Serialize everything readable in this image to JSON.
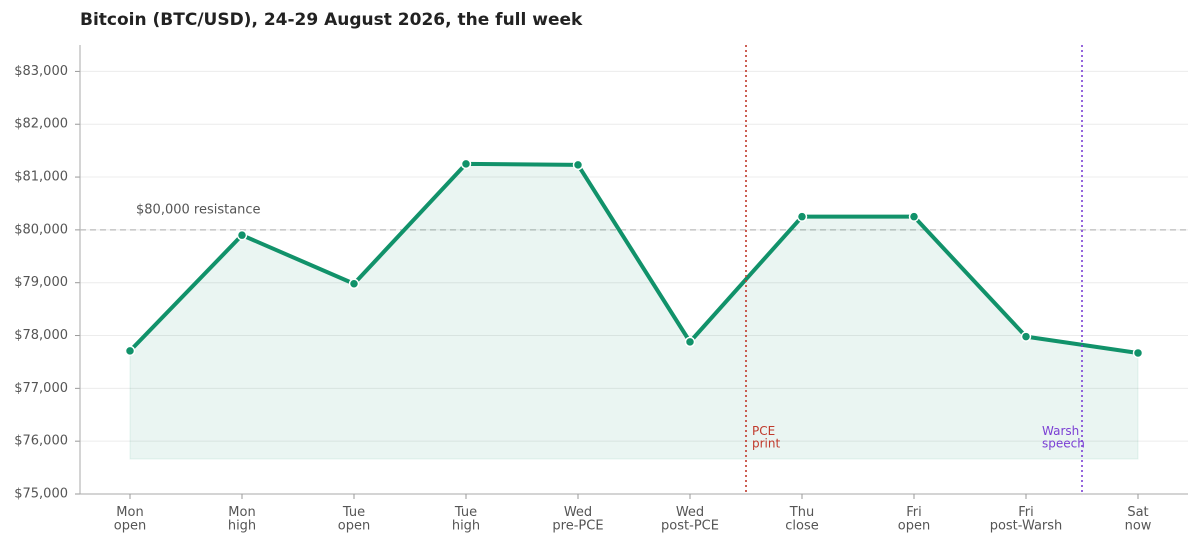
{
  "chart_data": {
    "type": "line",
    "title": "Bitcoin (BTC/USD), 24-29 August 2026, the full week",
    "categories": [
      "Mon\nopen",
      "Mon\nhigh",
      "Tue\nopen",
      "Tue\nhigh",
      "Wed\npre-PCE",
      "Wed\npost-PCE",
      "Thu\nclose",
      "Fri\nopen",
      "Fri\npost-Warsh",
      "Sat\nnow"
    ],
    "series": [
      {
        "name": "BTC/USD",
        "color": "#11926a",
        "values": [
          77710,
          79900,
          78980,
          81250,
          81230,
          77880,
          80250,
          80250,
          77980,
          77670
        ]
      }
    ],
    "ylim": [
      75000,
      83500
    ],
    "yticks": [
      {
        "value": 75000,
        "label": "$75,000"
      },
      {
        "value": 76000,
        "label": "$76,000"
      },
      {
        "value": 77000,
        "label": "$77,000"
      },
      {
        "value": 78000,
        "label": "$78,000"
      },
      {
        "value": 79000,
        "label": "$79,000"
      },
      {
        "value": 80000,
        "label": "$80,000"
      },
      {
        "value": 81000,
        "label": "$81,000"
      },
      {
        "value": 82000,
        "label": "$82,000"
      },
      {
        "value": 83000,
        "label": "$83,000"
      }
    ],
    "grid": true,
    "hlines": [
      {
        "value": 80000,
        "label": "$80,000 resistance",
        "color": "#bbbbbb"
      }
    ],
    "vlines": [
      {
        "x": 5.5,
        "label": "PCE\nprint",
        "color": "#c0392b"
      },
      {
        "x": 8.5,
        "label": "Warsh\nspeech",
        "color": "#7b3fd4"
      }
    ]
  }
}
